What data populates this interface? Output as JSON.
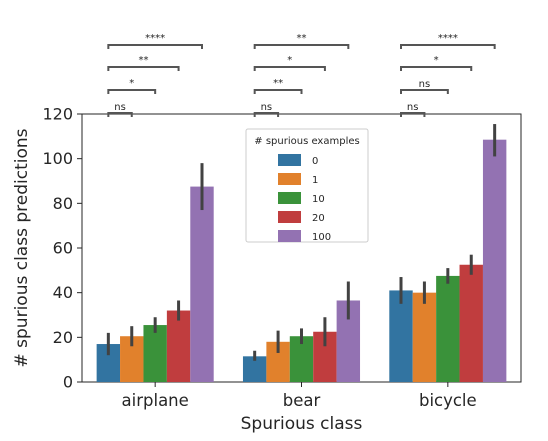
{
  "chart_data": {
    "type": "bar",
    "categories": [
      "airplane",
      "bear",
      "bicycle"
    ],
    "xlabel": "Spurious class",
    "ylabel": "# spurious class predictions",
    "ylim": [
      0,
      120
    ],
    "yticks": [
      0,
      20,
      40,
      60,
      80,
      100,
      120
    ],
    "legend_title": "# spurious examples",
    "legend_position": "top-center",
    "grid": false,
    "series": [
      {
        "name": "0",
        "color": "#3274a1",
        "values": [
          17,
          11.5,
          41
        ],
        "errors": [
          [
            12,
            22
          ],
          [
            9.5,
            14
          ],
          [
            35,
            47
          ]
        ]
      },
      {
        "name": "1",
        "color": "#e1812c",
        "values": [
          20.5,
          18,
          40
        ],
        "errors": [
          [
            16,
            25
          ],
          [
            13,
            23
          ],
          [
            35,
            45
          ]
        ]
      },
      {
        "name": "10",
        "color": "#3a923a",
        "values": [
          25.5,
          20.5,
          47.5
        ],
        "errors": [
          [
            22,
            29
          ],
          [
            17,
            24
          ],
          [
            44,
            51
          ]
        ]
      },
      {
        "name": "20",
        "color": "#c03d3e",
        "values": [
          32,
          22.5,
          52.5
        ],
        "errors": [
          [
            27.5,
            36.5
          ],
          [
            16,
            29
          ],
          [
            48,
            57
          ]
        ]
      },
      {
        "name": "100",
        "color": "#9372b2",
        "values": [
          87.5,
          36.5,
          108.5
        ],
        "errors": [
          [
            77,
            98
          ],
          [
            28,
            45
          ],
          [
            101,
            115.5
          ]
        ]
      }
    ],
    "significance": [
      {
        "category": "airplane",
        "comparisons": [
          {
            "to_series": "1",
            "label": "ns"
          },
          {
            "to_series": "10",
            "label": "*"
          },
          {
            "to_series": "20",
            "label": "**"
          },
          {
            "to_series": "100",
            "label": "****"
          }
        ]
      },
      {
        "category": "bear",
        "comparisons": [
          {
            "to_series": "1",
            "label": "ns"
          },
          {
            "to_series": "10",
            "label": "**"
          },
          {
            "to_series": "20",
            "label": "*"
          },
          {
            "to_series": "100",
            "label": "**"
          }
        ]
      },
      {
        "category": "bicycle",
        "comparisons": [
          {
            "to_series": "1",
            "label": "ns"
          },
          {
            "to_series": "10",
            "label": "ns"
          },
          {
            "to_series": "20",
            "label": "*"
          },
          {
            "to_series": "100",
            "label": "****"
          }
        ]
      }
    ]
  }
}
